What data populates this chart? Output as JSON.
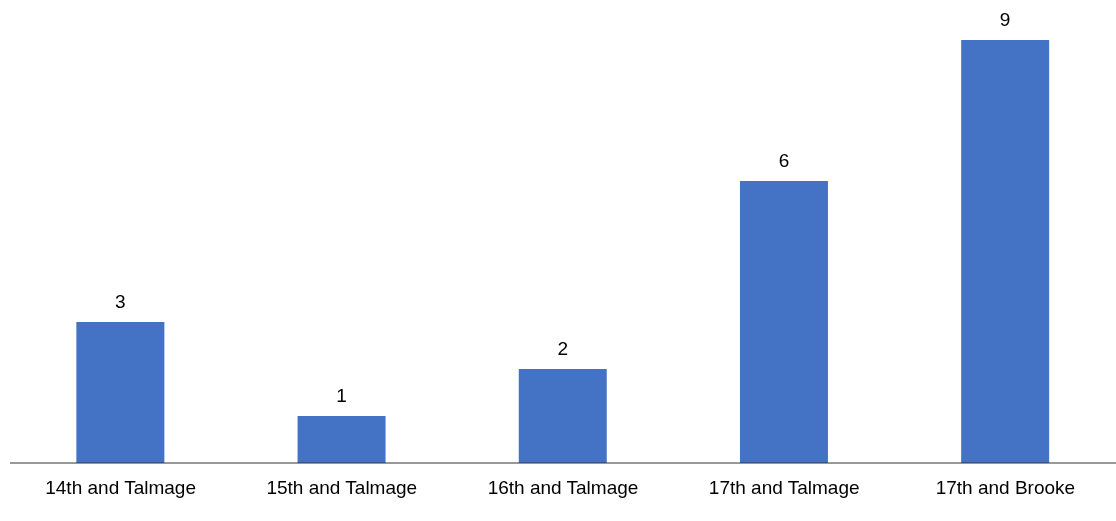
{
  "chart_data": {
    "type": "bar",
    "categories": [
      "14th and Talmage",
      "15th and Talmage",
      "16th and Talmage",
      "17th and Talmage",
      "17th and Brooke"
    ],
    "values": [
      3,
      1,
      2,
      6,
      9
    ],
    "color": "#4472c4",
    "data_labels": true
  }
}
